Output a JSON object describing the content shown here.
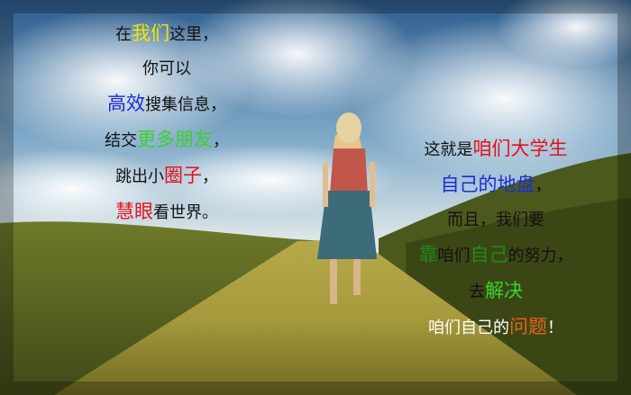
{
  "colors": {
    "default": "#111111",
    "yellow": "#f2e600",
    "blue": "#1a2bd6",
    "green": "#3cd12a",
    "red": "#e4101c",
    "white": "#ffffff",
    "orange": "#e8631a",
    "darkgreen": "#1f8a1a"
  },
  "left_text": {
    "lines": [
      [
        {
          "t": "在",
          "c": "default"
        },
        {
          "t": "我们",
          "c": "yellow",
          "big": true
        },
        {
          "t": "这里，",
          "c": "default"
        }
      ],
      [
        {
          "t": "你可以",
          "c": "default"
        }
      ],
      [
        {
          "t": "高效",
          "c": "blue",
          "big": true
        },
        {
          "t": "搜集信息，",
          "c": "default"
        }
      ],
      [
        {
          "t": "结交",
          "c": "default"
        },
        {
          "t": "更多朋友",
          "c": "green",
          "big": true
        },
        {
          "t": "，",
          "c": "default"
        }
      ],
      [
        {
          "t": "跳出小",
          "c": "default"
        },
        {
          "t": "圈子",
          "c": "red",
          "big": true
        },
        {
          "t": "，",
          "c": "default"
        }
      ],
      [
        {
          "t": "慧眼",
          "c": "red",
          "big": true
        },
        {
          "t": "看世界。",
          "c": "default"
        }
      ]
    ]
  },
  "right_text": {
    "lines": [
      [
        {
          "t": "这就是",
          "c": "default"
        },
        {
          "t": "咱们大学生",
          "c": "red",
          "big": true
        }
      ],
      [
        {
          "t": "自己的地盘",
          "c": "blue",
          "big": true
        },
        {
          "t": "，",
          "c": "default"
        }
      ],
      [
        {
          "t": "而且，我们要",
          "c": "default"
        }
      ],
      [
        {
          "t": "靠",
          "c": "darkgreen",
          "big": true
        },
        {
          "t": "咱们",
          "c": "default"
        },
        {
          "t": "自己",
          "c": "darkgreen",
          "big": true
        },
        {
          "t": "的努力，",
          "c": "default"
        }
      ],
      [
        {
          "t": "去",
          "c": "default"
        },
        {
          "t": "解决",
          "c": "green",
          "big": true
        }
      ],
      [
        {
          "t": "咱们自己的",
          "c": "white"
        },
        {
          "t": "问题",
          "c": "orange",
          "big": true
        },
        {
          "t": "！",
          "c": "white"
        }
      ]
    ]
  }
}
